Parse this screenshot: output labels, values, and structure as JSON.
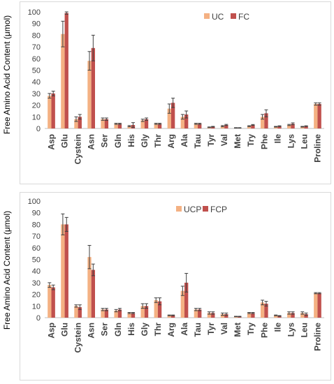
{
  "chart_data": [
    {
      "type": "bar",
      "ylabel": "Free Amino Acid Content (μmol)",
      "ylim": [
        0,
        100
      ],
      "yticks": [
        0,
        10,
        20,
        30,
        40,
        50,
        60,
        70,
        80,
        90,
        100
      ],
      "grid": false,
      "legend_position": "top-right",
      "categories": [
        "Asp",
        "Glu",
        "Cystein",
        "Asn",
        "Ser",
        "Gln",
        "His",
        "Gly",
        "Thr",
        "Arg",
        "Ala",
        "Tau",
        "Tyr",
        "Val",
        "Met",
        "Try",
        "Phe",
        "Ile",
        "Lys",
        "Leu",
        "Proline"
      ],
      "series": [
        {
          "name": "UC",
          "color": "#f4b183",
          "values": [
            28,
            81,
            8,
            58,
            8,
            4,
            2,
            7,
            4,
            17,
            10,
            4,
            1,
            2,
            0.5,
            2,
            10,
            1.5,
            3,
            1.5,
            21
          ],
          "errors": [
            2,
            11,
            2,
            8,
            1,
            0.5,
            0.5,
            1,
            0.5,
            4,
            2,
            0.5,
            0.3,
            0.5,
            0.2,
            0.4,
            2,
            0.3,
            0.5,
            0.3,
            1
          ]
        },
        {
          "name": "FC",
          "color": "#c0504d",
          "values": [
            30,
            99,
            10,
            69,
            8,
            4,
            3,
            8,
            4,
            22,
            12,
            4,
            1.5,
            3,
            0.5,
            3,
            13,
            2,
            4,
            2,
            21
          ],
          "errors": [
            2,
            1,
            2,
            11,
            1,
            0.5,
            2,
            1,
            0.5,
            4,
            3,
            0.5,
            0.3,
            0.5,
            0.2,
            0.4,
            3,
            0.3,
            0.8,
            0.3,
            1
          ]
        }
      ]
    },
    {
      "type": "bar",
      "ylabel": "Free Amino Acid Content (μmol)",
      "ylim": [
        0,
        100
      ],
      "yticks": [
        0,
        10,
        20,
        30,
        40,
        50,
        60,
        70,
        80,
        90,
        100
      ],
      "grid": false,
      "legend_position": "top-center",
      "categories": [
        "Asp",
        "Glu",
        "Cystein",
        "Asn",
        "Ser",
        "Gln",
        "His",
        "Gly",
        "Thr",
        "Arg",
        "Ala",
        "Tau",
        "Tyr",
        "Val",
        "Met",
        "Try",
        "Phe",
        "Ile",
        "Lys",
        "Leu",
        "Proline"
      ],
      "series": [
        {
          "name": "UCP",
          "color": "#f4b183",
          "values": [
            28,
            80,
            10,
            52,
            7,
            6,
            4,
            10,
            15,
            2,
            23,
            7,
            4,
            3,
            1,
            4,
            13,
            2,
            4,
            4,
            21
          ],
          "errors": [
            2,
            9,
            1,
            10,
            1,
            1,
            0.5,
            2,
            2,
            0.3,
            4,
            1,
            1,
            1,
            0.2,
            0.5,
            2,
            0.3,
            1,
            1,
            0.5
          ]
        },
        {
          "name": "FCP",
          "color": "#c0504d",
          "values": [
            26,
            80,
            9,
            41,
            7,
            7,
            4,
            10,
            14,
            2,
            30,
            7,
            4,
            3,
            1,
            4,
            12,
            1.5,
            4,
            3,
            21
          ],
          "errors": [
            2,
            6,
            2,
            5,
            1,
            1,
            0.5,
            2,
            3,
            0.3,
            8,
            1,
            1,
            1,
            0.2,
            0.5,
            2,
            0.3,
            1,
            1,
            0.5
          ]
        }
      ]
    }
  ]
}
